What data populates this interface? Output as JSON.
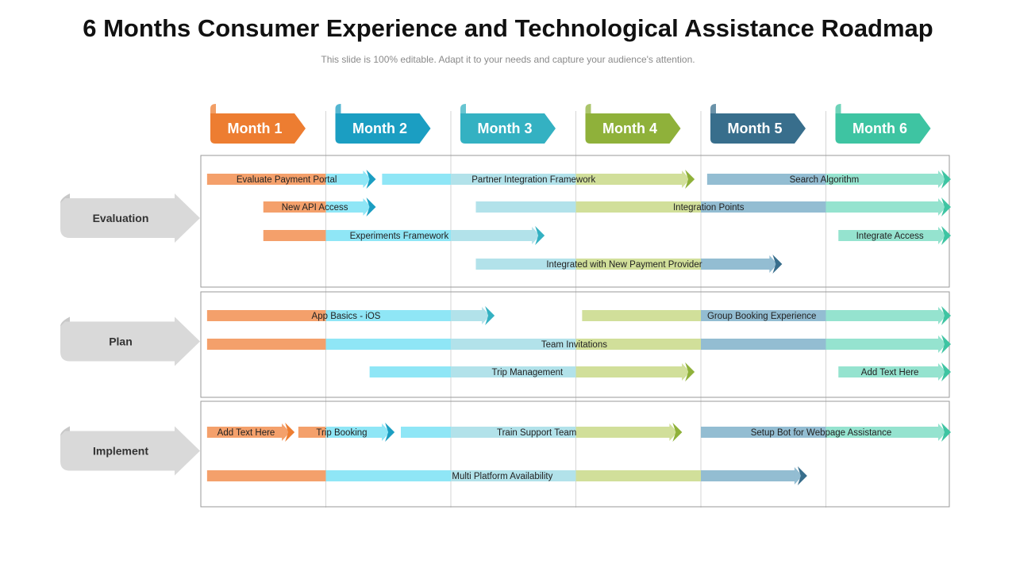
{
  "slide": {
    "title": "6 Months Consumer Experience and Technological Assistance Roadmap",
    "subtitle": "This slide is 100% editable. Adapt it to your needs and capture your audience's attention."
  },
  "months": [
    {
      "label": "Month 1",
      "color": "#ED7D31"
    },
    {
      "label": "Month 2",
      "color": "#1B9EC2"
    },
    {
      "label": "Month 3",
      "color": "#34B1C2"
    },
    {
      "label": "Month 4",
      "color": "#8FB13A"
    },
    {
      "label": "Month 5",
      "color": "#386E8C"
    },
    {
      "label": "Month 6",
      "color": "#3EC4A2"
    }
  ],
  "stages": [
    {
      "label": "Evaluation",
      "tasks": [
        {
          "label": "Evaluate Payment Portal",
          "start": 0.05,
          "end": 1.4
        },
        {
          "label": "Partner Integration Framework",
          "start": 1.45,
          "end": 3.95
        },
        {
          "label": "Search Algorithm",
          "start": 4.05,
          "end": 6.0
        },
        {
          "label": "New API Access",
          "start": 0.5,
          "end": 1.4
        },
        {
          "label": "Integration Points",
          "start": 2.2,
          "end": 6.0
        },
        {
          "label": "Experiments Framework",
          "start": 0.5,
          "end": 2.75
        },
        {
          "label": "Integrate Access",
          "start": 5.1,
          "end": 6.0
        },
        {
          "label": "Integrated with New Payment Provider",
          "start": 2.2,
          "end": 4.65
        }
      ]
    },
    {
      "label": "Plan",
      "tasks": [
        {
          "label": "App Basics - iOS",
          "start": 0.05,
          "end": 2.35
        },
        {
          "label": "Group Booking Experience",
          "start": 3.05,
          "end": 6.0
        },
        {
          "label": "Team Invitations",
          "start": 0.05,
          "end": 6.0
        },
        {
          "label": "Trip Management",
          "start": 1.35,
          "end": 3.95
        },
        {
          "label": "Add Text Here",
          "start": 5.1,
          "end": 6.0
        }
      ]
    },
    {
      "label": "Implement",
      "tasks": [
        {
          "label": "Add Text Here",
          "start": 0.05,
          "end": 0.75
        },
        {
          "label": "Trip Booking",
          "start": 0.78,
          "end": 1.55
        },
        {
          "label": "Train Support Team",
          "start": 1.6,
          "end": 3.85
        },
        {
          "label": "Setup Bot for Webpage Assistance",
          "start": 4.0,
          "end": 6.0
        },
        {
          "label": "Multi Platform Availability",
          "start": 0.05,
          "end": 4.85
        }
      ]
    }
  ]
}
